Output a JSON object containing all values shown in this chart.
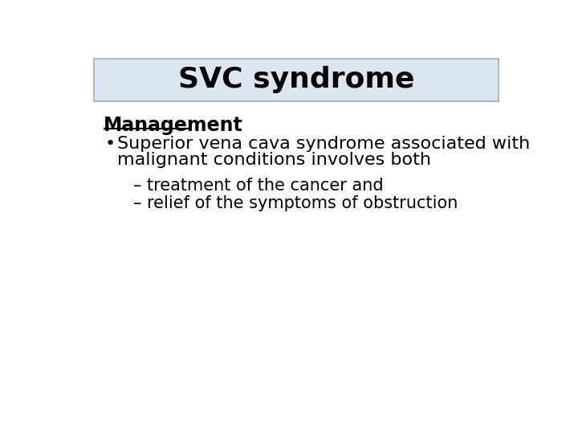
{
  "title": "SVC syndrome",
  "title_bg_color": "#dce6f1",
  "title_border_color": "#9ab0cc",
  "title_fontsize": 26,
  "title_fontweight": "bold",
  "bg_color": "#ffffff",
  "section_heading": "Management",
  "section_heading_fontsize": 17,
  "section_heading_fontweight": "bold",
  "bullet_text_line1": "Superior vena cava syndrome associated with",
  "bullet_text_line2": "malignant conditions involves both",
  "bullet_fontsize": 16,
  "sub_bullet1": "– treatment of the cancer and",
  "sub_bullet2": "– relief of the symptoms of obstruction",
  "sub_bullet_fontsize": 15,
  "text_color": "#000000"
}
